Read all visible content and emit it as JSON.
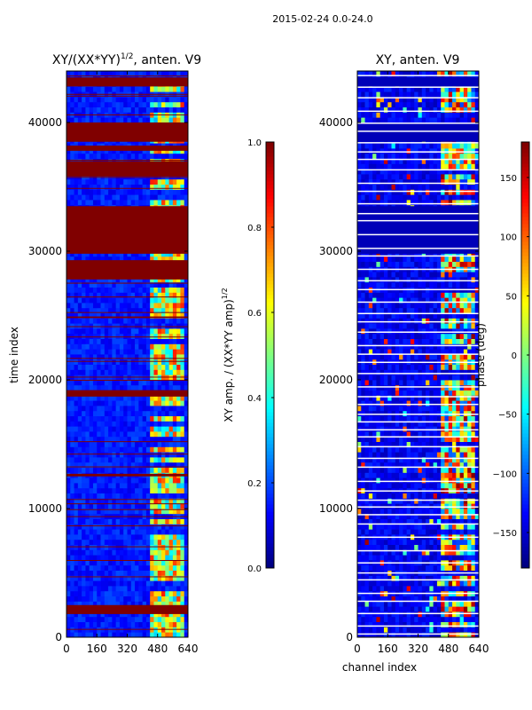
{
  "suptitle": "2015-02-24 0.0-24.0",
  "colormap": "jet",
  "chart_data": [
    {
      "type": "heatmap",
      "title_prefix": "XY/(XX*YY)",
      "title_exponent": "1/2",
      "title_suffix": ", anten. V9",
      "xlabel": "",
      "ylabel": "time index",
      "xlim": [
        0,
        640
      ],
      "ylim": [
        0,
        44000
      ],
      "xticks": [
        0,
        160,
        320,
        480,
        640
      ],
      "yticks": [
        0,
        10000,
        20000,
        30000,
        40000
      ],
      "colorbar": {
        "label_prefix": "XY amp. / (XX*YY amp)",
        "label_exponent": "1/2",
        "range": [
          0.0,
          1.0
        ],
        "ticks": [
          0.0,
          0.2,
          0.4,
          0.6,
          0.8,
          1.0
        ],
        "tick_labels": [
          "0.0",
          "0.2",
          "0.4",
          "0.6",
          "0.8",
          "1.0"
        ]
      },
      "saturated_time_bands": [
        [
          1800,
          2500
        ],
        [
          27800,
          29300
        ],
        [
          29800,
          33500
        ],
        [
          35800,
          37000
        ],
        [
          37800,
          38200
        ],
        [
          38500,
          40000
        ],
        [
          42800,
          43500
        ],
        [
          18700,
          19200
        ],
        [
          12500,
          12700
        ]
      ],
      "bright_channel_range": [
        440,
        620
      ],
      "baseline_value": 0.15
    },
    {
      "type": "heatmap",
      "title": "XY, anten. V9",
      "xlabel": "channel index",
      "ylabel": "",
      "xlim": [
        0,
        640
      ],
      "ylim": [
        0,
        44000
      ],
      "xticks": [
        0,
        160,
        320,
        480,
        640
      ],
      "yticks": [
        0,
        10000,
        20000,
        30000,
        40000
      ],
      "colorbar": {
        "label": "phase (deg)",
        "range": [
          -180,
          180
        ],
        "ticks": [
          -150,
          -100,
          -50,
          0,
          50,
          100,
          150
        ],
        "tick_labels": [
          "−150",
          "−100",
          "−50",
          "0",
          "50",
          "100",
          "150"
        ]
      },
      "uniform_time_bands": [
        [
          29800,
          33500
        ],
        [
          38500,
          40000
        ],
        [
          42800,
          43500
        ]
      ],
      "white_band_every": 800,
      "bright_channel_range": [
        440,
        620
      ],
      "baseline_value": -160
    }
  ]
}
